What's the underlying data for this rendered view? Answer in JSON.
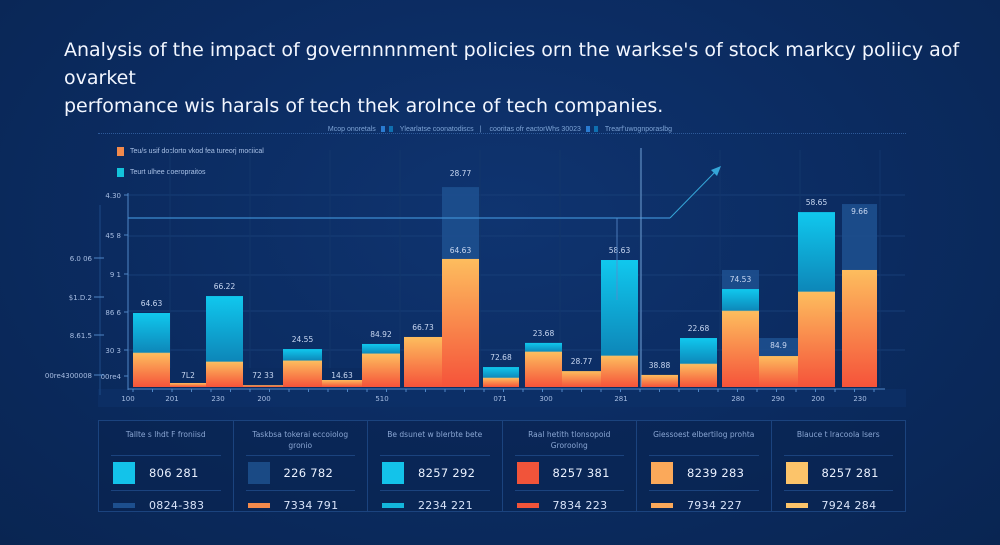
{
  "title": {
    "line1": "Analysis of the impact of governnnnment policies orn the warkse's of stock markcy poliicy aof ovarket",
    "line2": "perfomance wis harals of tech thek aroInce of tech companies."
  },
  "header_legend": {
    "items": [
      "Mcop onoretals",
      "Ylearlatse coonatodiscs",
      "cooritas ofr eactorWhs 30023",
      "Trearf'uwognporaslbg"
    ]
  },
  "colors": {
    "background": "#0b2b60",
    "orange_bottom": "#f5533a",
    "orange_top": "#fdbd5e",
    "cyan_top": "#10c4ea",
    "cyan_bottom": "#0e8dbe",
    "ghost": "#1d4f8e",
    "axis": "#4f86c6",
    "grid": "#163c74"
  },
  "chart_data": {
    "type": "bar",
    "stacked": true,
    "title": "Analysis of the impact of governnnnment policies orn the warkse's of stock markcy poliicy aof ovarket perfomance wis harals of tech thek aroInce of tech companies.",
    "legend": [
      {
        "name": "Teu/s usif doclorto vkod fea tureorj mociical",
        "color": "#f28a4c"
      },
      {
        "name": "Teurt ulhee ooeropraitos",
        "color": "#13c3da"
      }
    ],
    "legend_position": "top-left",
    "grid": true,
    "ylim": [
      0,
      100
    ],
    "y_tick_labels_inner": [
      "4.30",
      "45 8",
      "9 1",
      "86 6",
      "30 3",
      "00re4"
    ],
    "y_tick_labels_outer": [
      "6.0 06",
      "$1.D.2",
      "8.61.5",
      "00re4300008"
    ],
    "x_tick_labels": [
      "100",
      "201",
      "230",
      "200",
      "510",
      "071",
      "300",
      "281",
      "280",
      "290",
      "200",
      "230"
    ],
    "bars": [
      {
        "label": "64.63",
        "orange": 16.0,
        "cyan": 34.9,
        "ghost": null
      },
      {
        "label": "7L2",
        "orange": 1.9,
        "cyan": null,
        "ghost": null
      },
      {
        "label": "66.22",
        "orange": 11.8,
        "cyan": 42.9,
        "ghost": null
      },
      {
        "label": "72 33",
        "orange": 0.9,
        "cyan": null,
        "ghost": null
      },
      {
        "label": "24.55",
        "orange": 12.3,
        "cyan": 17.9,
        "ghost": null
      },
      {
        "label": "14.63",
        "orange": 3.3,
        "cyan": null,
        "ghost": null
      },
      {
        "label": "84.92",
        "orange": 15.6,
        "cyan": 20.3,
        "ghost": null
      },
      {
        "label": "66.73",
        "orange": 23.6,
        "cyan": null,
        "ghost": null
      },
      {
        "label": "64.63",
        "top_label": "28.77",
        "orange": 60.4,
        "cyan": null,
        "ghost": 94.3
      },
      {
        "label": "72.68",
        "orange": 4.2,
        "cyan": 9.4,
        "ghost": null
      },
      {
        "label": "23.68",
        "orange": 16.5,
        "cyan": 20.8,
        "ghost": null
      },
      {
        "label": "28.77",
        "orange": 7.5,
        "cyan": null,
        "ghost": null
      },
      {
        "label": "58.63",
        "orange": 14.6,
        "cyan": 59.9,
        "ghost": null
      },
      {
        "label": "38.88",
        "orange": 5.7,
        "cyan": null,
        "ghost": null
      },
      {
        "label": "22.68",
        "orange": 10.8,
        "cyan": 23.1,
        "ghost": null
      },
      {
        "label": "74.53",
        "orange": 35.8,
        "cyan": 46.2,
        "ghost": 55.2
      },
      {
        "label": "84.9",
        "orange": 14.6,
        "cyan": null,
        "ghost": 23.1
      },
      {
        "label": "58.65",
        "orange": 44.8,
        "cyan": 82.5,
        "ghost": null
      },
      {
        "label": "9.66",
        "orange": 55.2,
        "cyan": null,
        "ghost": 86.3
      }
    ],
    "annotations": [
      {
        "type": "threshold-line",
        "value": 79.7
      },
      {
        "type": "trend-arrow",
        "direction": "up-right"
      }
    ]
  },
  "cards": [
    {
      "title": "Tallte s lhdt F froniisd",
      "value1": "806 281",
      "value2": "0824-383",
      "swatch_big": "#13c3ea",
      "swatch_bar": "#1d4f8e"
    },
    {
      "title": "Taskbsa tokerai eccoiolog gronio",
      "value1": "226 782",
      "value2": "7334 791",
      "swatch_big": "#1a4a85",
      "swatch_bar": "#f28a4c"
    },
    {
      "title": "Be dsunet w blerbte bete",
      "value1": "8257 292",
      "value2": "2234 221",
      "swatch_big": "#13c3ea",
      "swatch_bar": "#13b6dc"
    },
    {
      "title": "Raal hetith tlonsopoid Groroolng",
      "value1": "8257 381",
      "value2": "7834 223",
      "swatch_big": "#f1543a",
      "swatch_bar": "#f1543a"
    },
    {
      "title": "Giessoest elbertilog prohta",
      "value1": "8239 283",
      "value2": "7934 227",
      "swatch_big": "#fba95a",
      "swatch_bar": "#fba95a"
    },
    {
      "title": "Blauce t lracoola lsers",
      "value1": "8257 281",
      "value2": "7924 284",
      "swatch_big": "#fcc46a",
      "swatch_bar": "#fcc46a"
    }
  ]
}
